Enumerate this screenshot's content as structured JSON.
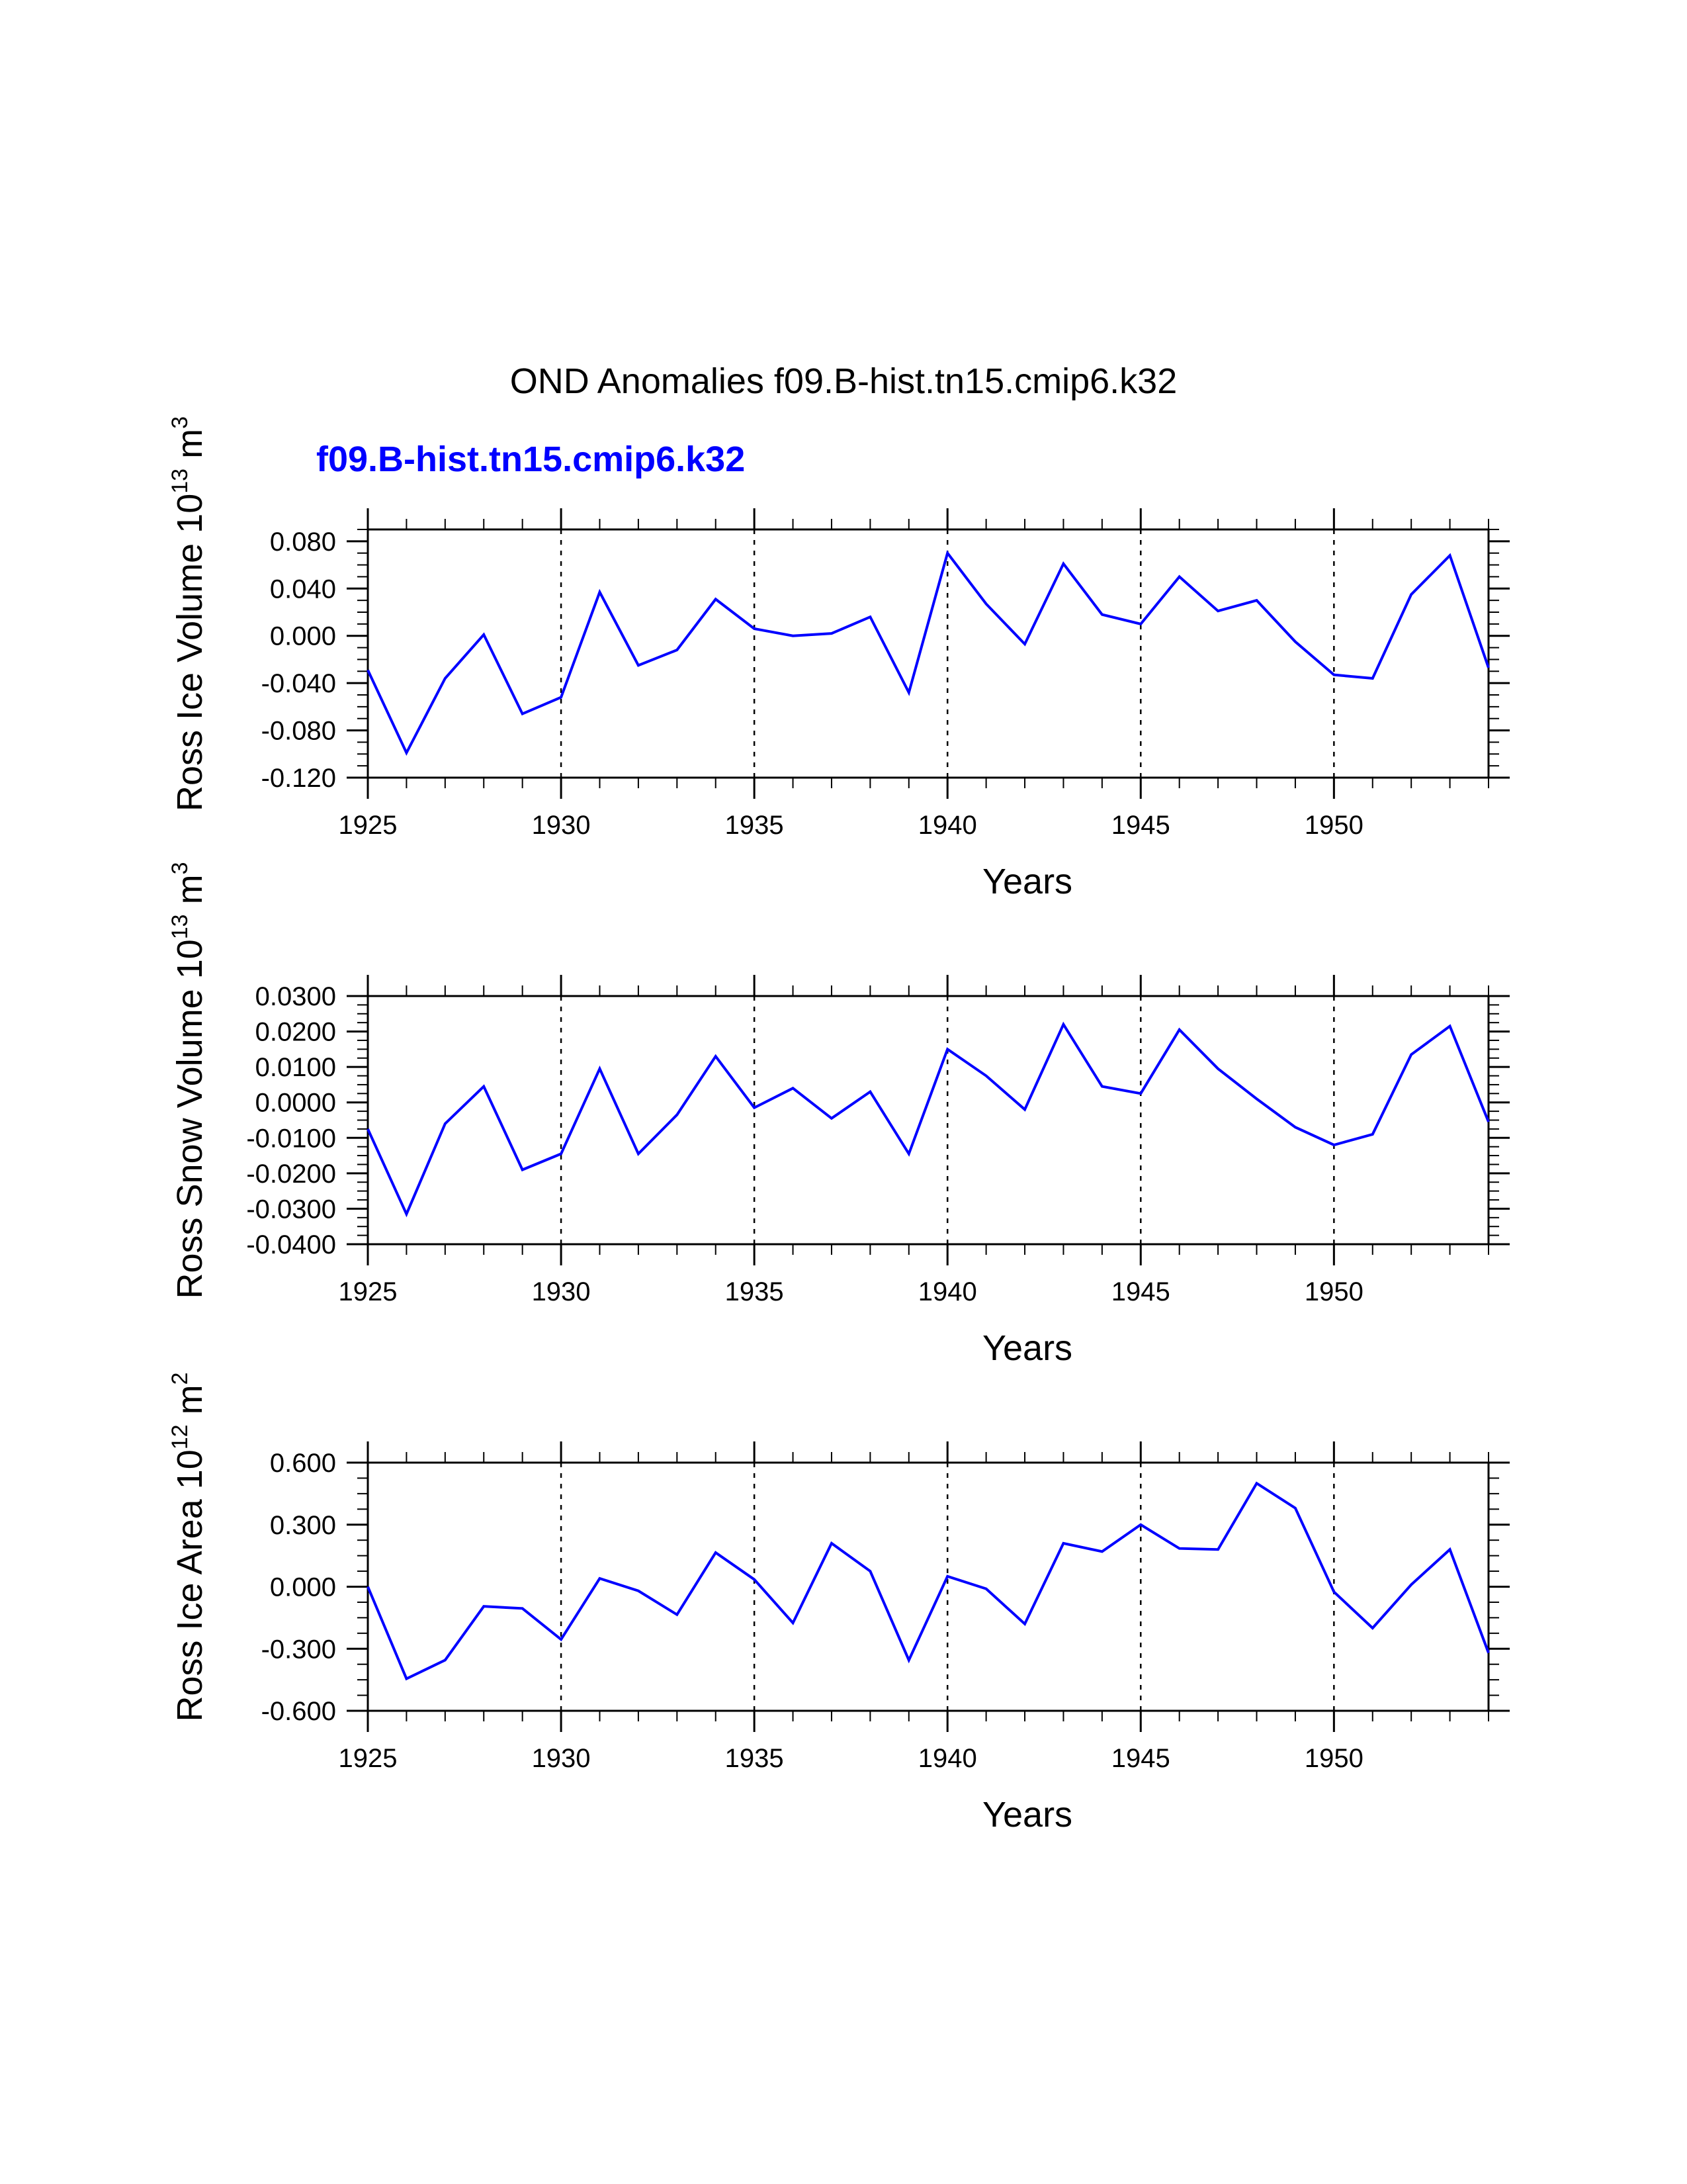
{
  "figure": {
    "title": "OND Anomalies f09.B-hist.tn15.cmip6.k32",
    "subtitle": "f09.B-hist.tn15.cmip6.k32",
    "line_color": "#0000ff"
  },
  "chart_data": [
    {
      "type": "line",
      "name": "ice-volume",
      "xlabel": "Years",
      "ylabel": "Ross Ice Volume 10",
      "ylabel_exp": "13",
      "ylabel_unit": " m",
      "ylabel_unit_exp": "3",
      "xlim": [
        1925,
        1954
      ],
      "ylim": [
        -0.12,
        0.09
      ],
      "yticks": [
        -0.12,
        -0.08,
        -0.04,
        0.0,
        0.04,
        0.08
      ],
      "ytick_labels": [
        "-0.120",
        "-0.080",
        "-0.040",
        "0.000",
        "0.040",
        "0.080"
      ],
      "yminor_step": 0.01,
      "xticks": [
        1925,
        1930,
        1935,
        1940,
        1945,
        1950
      ],
      "xtick_labels": [
        "1925",
        "1930",
        "1935",
        "1940",
        "1945",
        "1950"
      ],
      "x": [
        1925,
        1926,
        1927,
        1928,
        1929,
        1930,
        1931,
        1932,
        1933,
        1934,
        1935,
        1936,
        1937,
        1938,
        1939,
        1940,
        1941,
        1942,
        1943,
        1944,
        1945,
        1946,
        1947,
        1948,
        1949,
        1950,
        1951,
        1952,
        1953,
        1954
      ],
      "values": [
        -0.029,
        -0.099,
        -0.036,
        0.001,
        -0.066,
        -0.052,
        0.037,
        -0.025,
        -0.012,
        0.031,
        0.006,
        0.0,
        0.002,
        0.016,
        -0.048,
        0.07,
        0.027,
        -0.007,
        0.061,
        0.018,
        0.01,
        0.05,
        0.021,
        0.03,
        -0.005,
        -0.033,
        -0.036,
        0.035,
        0.068,
        -0.027
      ]
    },
    {
      "type": "line",
      "name": "snow-volume",
      "xlabel": "Years",
      "ylabel": "Ross Snow Volume 10",
      "ylabel_exp": "13",
      "ylabel_unit": " m",
      "ylabel_unit_exp": "3",
      "xlim": [
        1925,
        1954
      ],
      "ylim": [
        -0.04,
        0.03
      ],
      "yticks": [
        -0.04,
        -0.03,
        -0.02,
        -0.01,
        0.0,
        0.01,
        0.02,
        0.03
      ],
      "ytick_labels": [
        "-0.0400",
        "-0.0300",
        "-0.0200",
        "-0.0100",
        "0.0000",
        "0.0100",
        "0.0200",
        "0.0300"
      ],
      "yminor_step": 0.0025,
      "xticks": [
        1925,
        1930,
        1935,
        1940,
        1945,
        1950
      ],
      "xtick_labels": [
        "1925",
        "1930",
        "1935",
        "1940",
        "1945",
        "1950"
      ],
      "x": [
        1925,
        1926,
        1927,
        1928,
        1929,
        1930,
        1931,
        1932,
        1933,
        1934,
        1935,
        1936,
        1937,
        1938,
        1939,
        1940,
        1941,
        1942,
        1943,
        1944,
        1945,
        1946,
        1947,
        1948,
        1949,
        1950,
        1951,
        1952,
        1953,
        1954
      ],
      "values": [
        -0.0075,
        -0.0315,
        -0.006,
        0.0045,
        -0.019,
        -0.0145,
        0.0095,
        -0.0145,
        -0.0035,
        0.013,
        -0.0015,
        0.004,
        -0.0045,
        0.003,
        -0.0145,
        0.015,
        0.0075,
        -0.002,
        0.022,
        0.0045,
        0.0025,
        0.0205,
        0.0095,
        0.001,
        -0.007,
        -0.012,
        -0.009,
        0.0135,
        0.0215,
        -0.0055
      ]
    },
    {
      "type": "line",
      "name": "ice-area",
      "xlabel": "Years",
      "ylabel": "Ross Ice Area 10",
      "ylabel_exp": "12",
      "ylabel_unit": " m",
      "ylabel_unit_exp": "2",
      "xlim": [
        1925,
        1954
      ],
      "ylim": [
        -0.6,
        0.6
      ],
      "yticks": [
        -0.6,
        -0.3,
        0.0,
        0.3,
        0.6
      ],
      "ytick_labels": [
        "-0.600",
        "-0.300",
        "0.000",
        "0.300",
        "0.600"
      ],
      "yminor_step": 0.075,
      "xticks": [
        1925,
        1930,
        1935,
        1940,
        1945,
        1950
      ],
      "xtick_labels": [
        "1925",
        "1930",
        "1935",
        "1940",
        "1945",
        "1950"
      ],
      "x": [
        1925,
        1926,
        1927,
        1928,
        1929,
        1930,
        1931,
        1932,
        1933,
        1934,
        1935,
        1936,
        1937,
        1938,
        1939,
        1940,
        1941,
        1942,
        1943,
        1944,
        1945,
        1946,
        1947,
        1948,
        1949,
        1950,
        1951,
        1952,
        1953,
        1954
      ],
      "values": [
        0.0,
        -0.445,
        -0.355,
        -0.095,
        -0.105,
        -0.255,
        0.04,
        -0.02,
        -0.135,
        0.165,
        0.035,
        -0.175,
        0.21,
        0.075,
        -0.355,
        0.05,
        -0.01,
        -0.18,
        0.21,
        0.17,
        0.3,
        0.185,
        0.18,
        0.5,
        0.38,
        -0.025,
        -0.2,
        0.01,
        0.18,
        -0.32
      ]
    }
  ]
}
